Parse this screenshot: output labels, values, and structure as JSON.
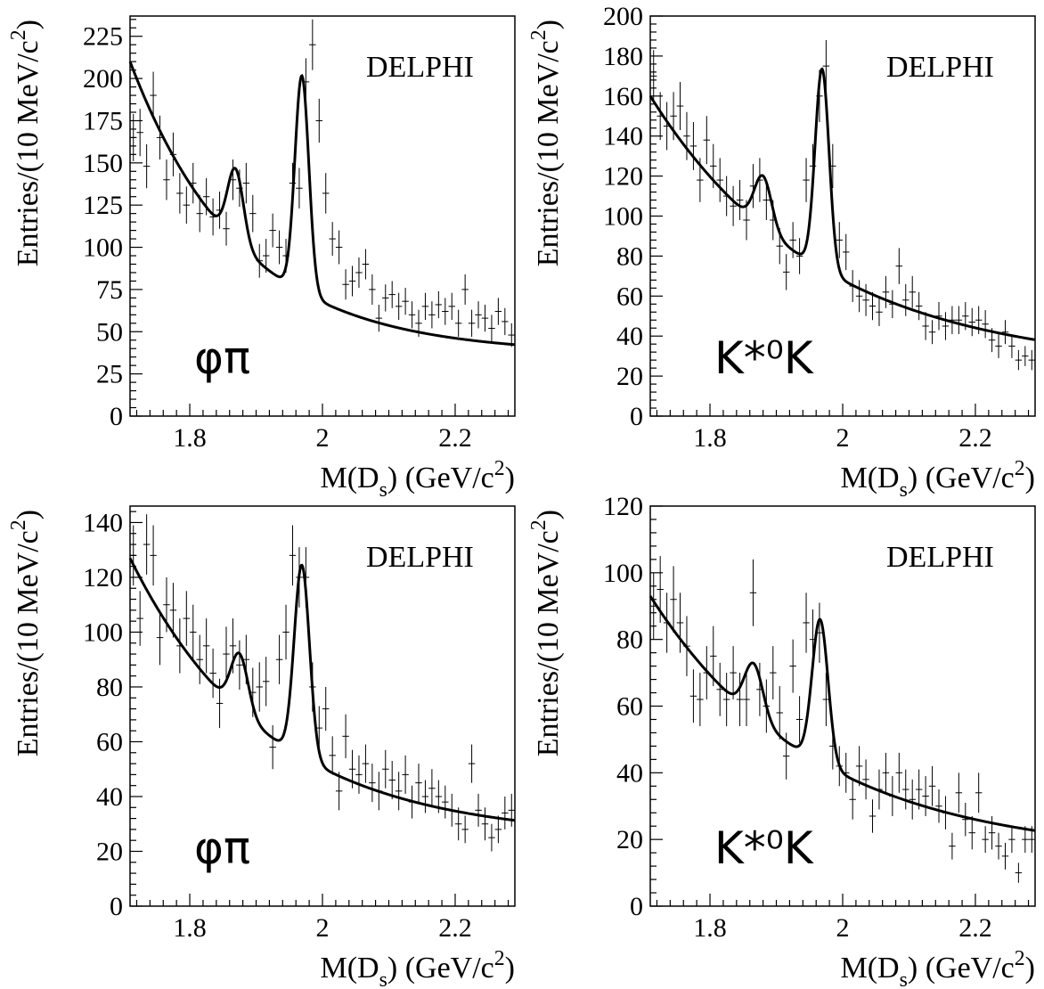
{
  "chart_data": [
    {
      "type": "scatter",
      "experiment": "DELPHI",
      "channel_label": "φπ",
      "xlabel": "M(D_s) (GeV/c^2)",
      "ylabel": "Entries/(10 MeV/c^2)",
      "xlim": [
        1.71,
        2.29
      ],
      "ylim": [
        0,
        237
      ],
      "x_ticks": [
        1.8,
        2.0,
        2.2
      ],
      "x_tick_labels": [
        "1.8",
        "2",
        "2.2"
      ],
      "y_ticks": [
        0,
        25,
        50,
        75,
        100,
        125,
        150,
        175,
        200,
        225
      ],
      "y_tick_labels": [
        "0",
        "25",
        "50",
        "75",
        "100",
        "125",
        "150",
        "175",
        "200",
        "225"
      ],
      "fit": {
        "bg_a": 173,
        "bg_b": 6.0,
        "bg_c": 37,
        "peak1": {
          "mean": 1.869,
          "amp": 43,
          "sigma": 0.012
        },
        "peak2": {
          "mean": 1.969,
          "amp": 128,
          "sigma": 0.0105
        }
      },
      "series": [
        {
          "x": [
            1.715,
            1.725,
            1.735,
            1.745,
            1.755,
            1.765,
            1.775,
            1.785,
            1.795,
            1.805,
            1.815,
            1.825,
            1.835,
            1.845,
            1.855,
            1.865,
            1.875,
            1.885,
            1.895,
            1.905,
            1.915,
            1.925,
            1.935,
            1.945,
            1.955,
            1.965,
            1.975,
            1.985,
            1.995,
            2.005,
            2.015,
            2.025,
            2.035,
            2.045,
            2.055,
            2.065,
            2.075,
            2.085,
            2.095,
            2.105,
            2.115,
            2.125,
            2.135,
            2.145,
            2.155,
            2.165,
            2.175,
            2.185,
            2.195,
            2.205,
            2.215,
            2.225,
            2.235,
            2.245,
            2.255,
            2.265,
            2.275,
            2.285
          ],
          "y": [
            165,
            168,
            148,
            190,
            165,
            140,
            155,
            132,
            125,
            138,
            120,
            130,
            118,
            122,
            111,
            140,
            135,
            138,
            120,
            92,
            95,
            110,
            100,
            95,
            138,
            135,
            198,
            220,
            175,
            132,
            105,
            100,
            78,
            80,
            85,
            90,
            75,
            58,
            70,
            72,
            65,
            68,
            60,
            55,
            65,
            60,
            66,
            62,
            65,
            55,
            75,
            55,
            60,
            58,
            52,
            62,
            56,
            48
          ],
          "err": [
            14,
            14,
            13,
            14,
            13,
            12,
            13,
            12,
            11,
            12,
            11,
            11,
            11,
            11,
            10,
            12,
            11,
            12,
            11,
            10,
            10,
            10,
            10,
            10,
            12,
            12,
            14,
            15,
            13,
            12,
            10,
            10,
            9,
            9,
            9,
            9,
            9,
            8,
            8,
            8,
            8,
            8,
            8,
            8,
            8,
            8,
            8,
            8,
            8,
            8,
            9,
            8,
            8,
            8,
            8,
            8,
            8,
            7
          ]
        }
      ]
    },
    {
      "type": "scatter",
      "experiment": "DELPHI",
      "channel_label": "K*⁰K",
      "xlabel": "M(D_s) (GeV/c^2)",
      "ylabel": "Entries/(10 MeV/c^2)",
      "xlim": [
        1.71,
        2.29
      ],
      "ylim": [
        0,
        200
      ],
      "x_ticks": [
        1.8,
        2.0,
        2.2
      ],
      "x_tick_labels": [
        "1.8",
        "2",
        "2.2"
      ],
      "y_ticks": [
        0,
        20,
        40,
        60,
        80,
        100,
        120,
        140,
        160,
        180,
        200
      ],
      "y_tick_labels": [
        "0",
        "20",
        "40",
        "60",
        "80",
        "100",
        "120",
        "140",
        "160",
        "180",
        "200"
      ],
      "fit": {
        "bg_a": 136,
        "bg_b": 3.9,
        "bg_c": 24,
        "peak1": {
          "mean": 1.88,
          "amp": 26,
          "sigma": 0.013
        },
        "peak2": {
          "mean": 1.969,
          "amp": 100,
          "sigma": 0.0105
        }
      },
      "series": [
        {
          "x": [
            1.715,
            1.725,
            1.735,
            1.745,
            1.755,
            1.765,
            1.775,
            1.785,
            1.795,
            1.805,
            1.815,
            1.825,
            1.835,
            1.845,
            1.855,
            1.865,
            1.875,
            1.885,
            1.895,
            1.905,
            1.915,
            1.925,
            1.935,
            1.945,
            1.955,
            1.965,
            1.975,
            1.985,
            1.995,
            2.005,
            2.015,
            2.025,
            2.035,
            2.045,
            2.055,
            2.065,
            2.075,
            2.085,
            2.095,
            2.105,
            2.115,
            2.125,
            2.135,
            2.145,
            2.155,
            2.165,
            2.175,
            2.185,
            2.195,
            2.205,
            2.215,
            2.225,
            2.235,
            2.245,
            2.255,
            2.265,
            2.275,
            2.285
          ],
          "y": [
            170,
            150,
            145,
            150,
            155,
            140,
            135,
            118,
            138,
            125,
            118,
            110,
            105,
            108,
            98,
            115,
            118,
            108,
            98,
            85,
            72,
            88,
            80,
            118,
            125,
            160,
            175,
            125,
            88,
            82,
            65,
            60,
            58,
            55,
            52,
            62,
            56,
            75,
            58,
            62,
            55,
            45,
            42,
            50,
            45,
            48,
            48,
            50,
            47,
            48,
            46,
            38,
            35,
            42,
            35,
            28,
            30,
            28
          ],
          "err": [
            13,
            12,
            12,
            12,
            12,
            12,
            12,
            11,
            12,
            11,
            11,
            10,
            10,
            10,
            10,
            11,
            11,
            10,
            10,
            9,
            9,
            9,
            9,
            11,
            11,
            13,
            13,
            11,
            9,
            9,
            8,
            8,
            8,
            7,
            7,
            8,
            7,
            9,
            8,
            8,
            7,
            7,
            6,
            7,
            7,
            7,
            7,
            7,
            7,
            7,
            7,
            6,
            6,
            6,
            6,
            5,
            5,
            5
          ]
        }
      ]
    },
    {
      "type": "scatter",
      "experiment": "DELPHI",
      "channel_label": "φπ",
      "xlabel": "M(D_s) (GeV/c^2)",
      "ylabel": "Entries/(10 MeV/c^2)",
      "xlim": [
        1.71,
        2.29
      ],
      "ylim": [
        0,
        146
      ],
      "x_ticks": [
        1.8,
        2.0,
        2.2
      ],
      "x_tick_labels": [
        "1.8",
        "2",
        "2.2"
      ],
      "y_ticks": [
        0,
        20,
        40,
        60,
        80,
        100,
        120,
        140
      ],
      "y_tick_labels": [
        "0",
        "20",
        "40",
        "60",
        "80",
        "100",
        "120",
        "140"
      ],
      "fit": {
        "bg_a": 102,
        "bg_b": 4.8,
        "bg_c": 25,
        "peak1": {
          "mean": 1.875,
          "amp": 21,
          "sigma": 0.013
        },
        "peak2": {
          "mean": 1.969,
          "amp": 70,
          "sigma": 0.0115
        }
      },
      "series": [
        {
          "x": [
            1.715,
            1.725,
            1.735,
            1.745,
            1.755,
            1.765,
            1.775,
            1.785,
            1.795,
            1.805,
            1.815,
            1.825,
            1.835,
            1.845,
            1.855,
            1.865,
            1.875,
            1.885,
            1.895,
            1.905,
            1.915,
            1.925,
            1.935,
            1.945,
            1.955,
            1.965,
            1.975,
            1.985,
            1.995,
            2.005,
            2.015,
            2.025,
            2.035,
            2.045,
            2.055,
            2.065,
            2.075,
            2.085,
            2.095,
            2.105,
            2.115,
            2.125,
            2.135,
            2.145,
            2.155,
            2.165,
            2.175,
            2.185,
            2.195,
            2.205,
            2.215,
            2.225,
            2.235,
            2.245,
            2.255,
            2.265,
            2.275,
            2.285
          ],
          "y": [
            128,
            105,
            132,
            128,
            98,
            110,
            108,
            95,
            105,
            100,
            90,
            95,
            85,
            74,
            92,
            95,
            88,
            90,
            78,
            80,
            82,
            58,
            90,
            100,
            128,
            120,
            120,
            80,
            65,
            72,
            55,
            42,
            62,
            50,
            48,
            52,
            45,
            42,
            50,
            46,
            42,
            48,
            38,
            45,
            40,
            43,
            40,
            38,
            35,
            30,
            28,
            52,
            35,
            30,
            25,
            28,
            34,
            35
          ],
          "err": [
            11,
            10,
            11,
            11,
            10,
            10,
            10,
            10,
            10,
            10,
            9,
            10,
            9,
            9,
            10,
            10,
            9,
            9,
            9,
            9,
            9,
            8,
            9,
            10,
            11,
            11,
            11,
            9,
            8,
            8,
            7,
            7,
            8,
            7,
            7,
            7,
            7,
            7,
            7,
            7,
            7,
            7,
            6,
            7,
            6,
            7,
            6,
            6,
            6,
            6,
            5,
            7,
            6,
            6,
            5,
            5,
            6,
            6
          ]
        }
      ]
    },
    {
      "type": "scatter",
      "experiment": "DELPHI",
      "channel_label": "K*⁰K",
      "xlabel": "M(D_s) (GeV/c^2)",
      "ylabel": "Entries/(10 MeV/c^2)",
      "xlim": [
        1.71,
        2.29
      ],
      "ylim": [
        0,
        120
      ],
      "x_ticks": [
        1.8,
        2.0,
        2.2
      ],
      "x_tick_labels": [
        "1.8",
        "2",
        "2.2"
      ],
      "y_ticks": [
        0,
        20,
        40,
        60,
        80,
        100,
        120
      ],
      "y_tick_labels": [
        "0",
        "20",
        "40",
        "60",
        "80",
        "100",
        "120"
      ],
      "fit": {
        "bg_a": 78,
        "bg_b": 4.0,
        "bg_c": 15,
        "peak1": {
          "mean": 1.866,
          "amp": 16,
          "sigma": 0.014
        },
        "peak2": {
          "mean": 1.966,
          "amp": 43,
          "sigma": 0.012
        }
      },
      "series": [
        {
          "x": [
            1.715,
            1.725,
            1.735,
            1.745,
            1.755,
            1.765,
            1.775,
            1.785,
            1.795,
            1.805,
            1.815,
            1.825,
            1.835,
            1.845,
            1.855,
            1.865,
            1.875,
            1.885,
            1.895,
            1.905,
            1.915,
            1.925,
            1.935,
            1.945,
            1.955,
            1.965,
            1.975,
            1.985,
            1.995,
            2.005,
            2.015,
            2.025,
            2.035,
            2.045,
            2.055,
            2.065,
            2.075,
            2.085,
            2.095,
            2.105,
            2.115,
            2.125,
            2.135,
            2.145,
            2.155,
            2.165,
            2.175,
            2.185,
            2.195,
            2.205,
            2.215,
            2.225,
            2.235,
            2.245,
            2.255,
            2.265,
            2.275,
            2.285
          ],
          "y": [
            90,
            95,
            85,
            92,
            85,
            78,
            63,
            62,
            70,
            75,
            65,
            62,
            70,
            62,
            62,
            94,
            65,
            60,
            70,
            58,
            45,
            72,
            56,
            85,
            80,
            82,
            62,
            48,
            42,
            40,
            32,
            42,
            38,
            27,
            35,
            40,
            33,
            40,
            35,
            32,
            35,
            33,
            36,
            30,
            28,
            18,
            34,
            26,
            22,
            34,
            20,
            22,
            18,
            15,
            20,
            10,
            20,
            20
          ],
          "err": [
            10,
            10,
            9,
            10,
            9,
            9,
            8,
            8,
            8,
            9,
            8,
            8,
            8,
            8,
            8,
            10,
            8,
            8,
            8,
            8,
            7,
            8,
            7,
            9,
            9,
            9,
            8,
            7,
            6,
            6,
            6,
            6,
            6,
            5,
            6,
            6,
            6,
            6,
            6,
            6,
            6,
            6,
            6,
            5,
            5,
            4,
            6,
            5,
            5,
            6,
            4,
            5,
            4,
            4,
            4,
            3,
            4,
            4
          ]
        }
      ]
    }
  ]
}
